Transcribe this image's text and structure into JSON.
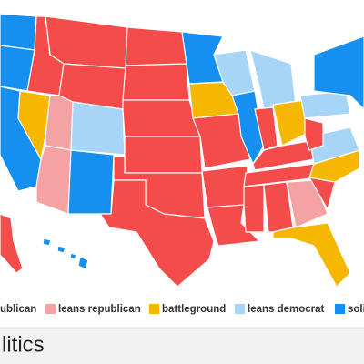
{
  "legend": [
    {
      "label": "ublican",
      "color": "#f44b4b"
    },
    {
      "label": "leans republican",
      "color": "#f4a2a2"
    },
    {
      "label": "battleground",
      "color": "#f5b700"
    },
    {
      "label": "leans democrat",
      "color": "#a6d5f7"
    },
    {
      "label": "soli",
      "color": "#1590f0"
    }
  ],
  "footer": "litics"
}
